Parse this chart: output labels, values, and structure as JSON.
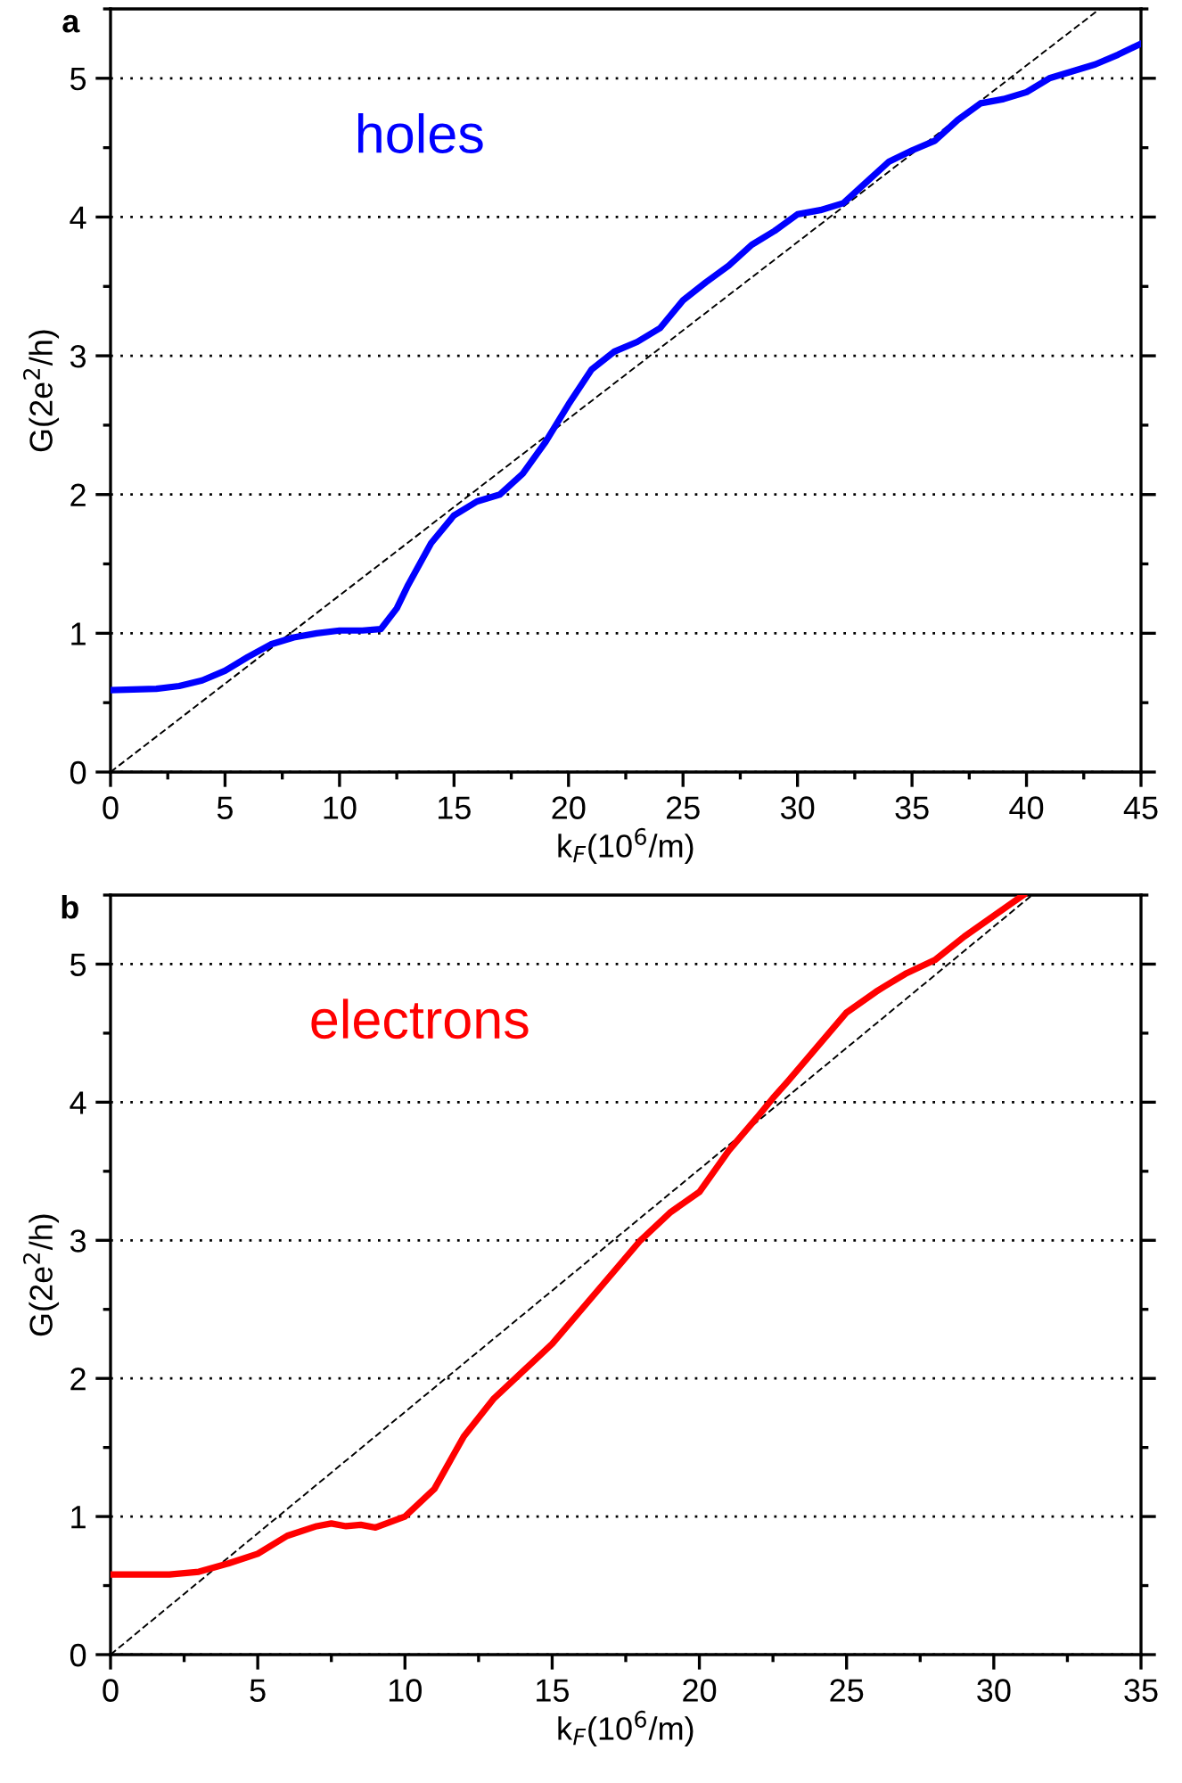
{
  "chart_data": [
    {
      "type": "line",
      "title": "a",
      "xlabel": "k$_{F}$(10$^{6}$/m)",
      "ylabel": "G(2e$^{2}$/h)",
      "xlim": [
        0,
        45
      ],
      "xticks": [
        0,
        5,
        10,
        15,
        20,
        25,
        30,
        35,
        40,
        45
      ],
      "ylim": [
        0,
        5.5
      ],
      "yticks": [
        0,
        1,
        2,
        3,
        4,
        5
      ],
      "grid": "y",
      "series": [
        {
          "name": "holes",
          "color": "#0000ff",
          "line_style": "solid",
          "x": [
            0,
            2,
            3,
            4,
            5,
            6,
            7,
            8,
            9,
            10,
            11,
            11.8,
            12.5,
            13,
            14,
            15,
            16,
            17,
            18,
            19,
            20,
            21,
            22,
            23,
            24,
            25,
            26,
            27,
            28,
            29,
            30,
            31,
            32,
            33,
            34,
            35,
            36,
            37,
            38,
            39,
            40,
            41,
            42,
            43,
            44,
            45
          ],
          "values": [
            0.59,
            0.6,
            0.62,
            0.66,
            0.73,
            0.83,
            0.92,
            0.97,
            1.0,
            1.02,
            1.02,
            1.03,
            1.18,
            1.35,
            1.65,
            1.85,
            1.95,
            2.0,
            2.15,
            2.38,
            2.65,
            2.9,
            3.03,
            3.1,
            3.2,
            3.4,
            3.53,
            3.65,
            3.8,
            3.9,
            4.02,
            4.05,
            4.1,
            4.25,
            4.4,
            4.48,
            4.55,
            4.7,
            4.82,
            4.85,
            4.9,
            5.0,
            5.05,
            5.1,
            5.17,
            5.25
          ]
        },
        {
          "type": "line",
          "color": "#000000",
          "line_style": "dashed",
          "x": [
            0,
            43.2
          ],
          "values": [
            0,
            5.5
          ]
        }
      ]
    },
    {
      "type": "line",
      "title": "b",
      "xlabel": "k$_{F}$(10$^{6}$/m)",
      "ylabel": "G(2e$^{2}$/h)",
      "xlim": [
        0,
        35
      ],
      "xticks": [
        0,
        5,
        10,
        15,
        20,
        25,
        30,
        35
      ],
      "ylim": [
        0,
        5.5
      ],
      "yticks": [
        0,
        1,
        2,
        3,
        4,
        5
      ],
      "grid": "y",
      "series": [
        {
          "name": "electrons",
          "color": "#ff0000",
          "line_style": "solid",
          "x": [
            0,
            2,
            3,
            4,
            5,
            6,
            7,
            7.5,
            8,
            8.5,
            9,
            10,
            11,
            12,
            13,
            14,
            15,
            16,
            17,
            18,
            19,
            20,
            21,
            22,
            22.5,
            23,
            24,
            25,
            26,
            26.3,
            27,
            28,
            29,
            30,
            31
          ],
          "values": [
            0.58,
            0.58,
            0.6,
            0.66,
            0.73,
            0.86,
            0.93,
            0.95,
            0.93,
            0.94,
            0.92,
            1.0,
            1.2,
            1.58,
            1.85,
            2.05,
            2.25,
            2.5,
            2.75,
            3.0,
            3.2,
            3.35,
            3.65,
            3.9,
            4.03,
            4.15,
            4.4,
            4.65,
            4.8,
            4.84,
            4.93,
            5.03,
            5.2,
            5.35,
            5.5
          ]
        },
        {
          "type": "line",
          "color": "#000000",
          "line_style": "dashed",
          "x": [
            0,
            31.3
          ],
          "values": [
            0,
            5.5
          ]
        }
      ]
    }
  ]
}
